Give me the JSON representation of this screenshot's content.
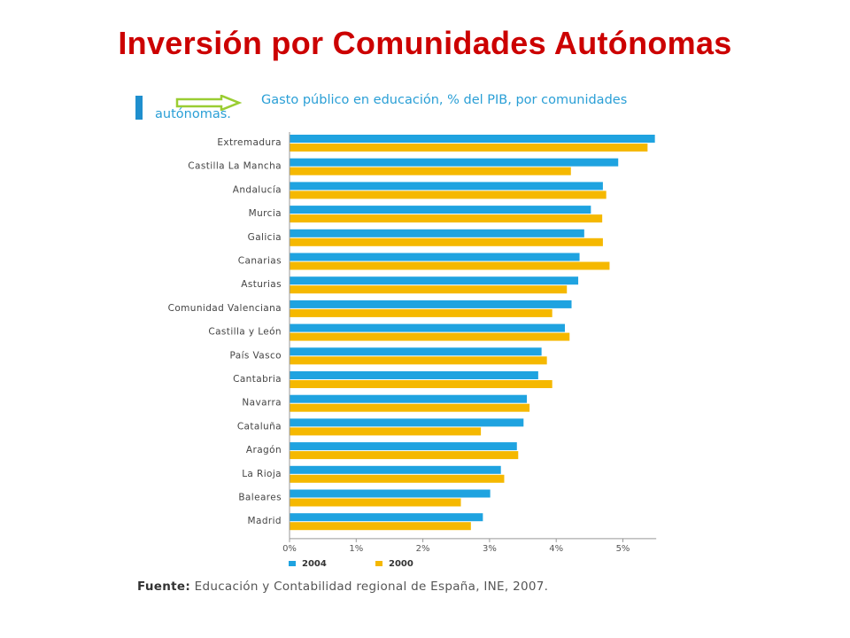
{
  "slide": {
    "title": "Inversión por Comunidades Autónomas"
  },
  "source": {
    "label": "Fuente:",
    "text": "Educación y Contabilidad regional de España, INE, 2007."
  },
  "colors": {
    "title": "#cc0000",
    "series_2004": "#1fa3e0",
    "series_2000": "#f5b800",
    "arrow": "#9acd32"
  },
  "chart_data": {
    "type": "bar",
    "orientation": "horizontal",
    "title": "Gasto público en educación, % del PIB, por comunidades autónomas.",
    "xlabel": "",
    "ylabel": "",
    "xlim": [
      0,
      5.5
    ],
    "x_ticks": [
      "0%",
      "1%",
      "2%",
      "3%",
      "4%",
      "5%"
    ],
    "grid": false,
    "legend_position": "bottom-left",
    "categories": [
      "Extremadura",
      "Castilla La Mancha",
      "Andalucía",
      "Murcia",
      "Galicia",
      "Canarias",
      "Asturias",
      "Comunidad Valenciana",
      "Castilla y León",
      "País Vasco",
      "Cantabria",
      "Navarra",
      "Cataluña",
      "Aragón",
      "La Rioja",
      "Baleares",
      "Madrid"
    ],
    "series": [
      {
        "name": "2004",
        "values": [
          5.48,
          4.93,
          4.7,
          4.52,
          4.42,
          4.35,
          4.33,
          4.23,
          4.13,
          3.78,
          3.73,
          3.56,
          3.51,
          3.41,
          3.17,
          3.01,
          2.9
        ]
      },
      {
        "name": "2000",
        "values": [
          5.37,
          4.22,
          4.75,
          4.69,
          4.7,
          4.8,
          4.16,
          3.94,
          4.2,
          3.86,
          3.94,
          3.6,
          2.87,
          3.43,
          3.22,
          2.57,
          2.72
        ]
      }
    ]
  }
}
